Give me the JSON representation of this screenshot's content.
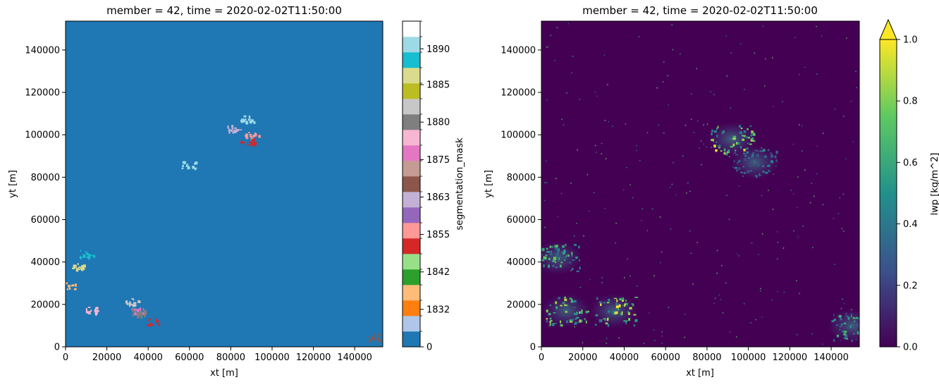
{
  "chart_data": [
    {
      "type": "heatmap",
      "title": "member = 42, time = 2020-02-02T11:50:00",
      "xlabel": "xt [m]",
      "ylabel": "yt [m]",
      "xlim": [
        0,
        153600
      ],
      "ylim": [
        0,
        153600
      ],
      "xticks": [
        "0",
        "20000",
        "40000",
        "60000",
        "80000",
        "100000",
        "120000",
        "140000"
      ],
      "yticks": [
        "0",
        "20000",
        "40000",
        "60000",
        "80000",
        "100000",
        "120000",
        "140000"
      ],
      "background_value": 0,
      "background_color": "#1f77b4",
      "colorbar": {
        "label": "segmentation_mask",
        "ticklabels": [
          "0",
          "1832",
          "1842",
          "1855",
          "1863",
          "1875",
          "1880",
          "1885",
          "1890"
        ],
        "colors": [
          "#1f77b4",
          "#aec7e8",
          "#ff7f0e",
          "#ffbb78",
          "#2ca02c",
          "#98df8a",
          "#d62728",
          "#ff9896",
          "#9467bd",
          "#c5b0d5",
          "#8c564b",
          "#c49c94",
          "#e377c2",
          "#f7b6d2",
          "#7f7f7f",
          "#c7c7c7",
          "#bcbd22",
          "#dbdb8d",
          "#17becf",
          "#9edae5",
          "#ffffff"
        ]
      },
      "features": [
        {
          "x": 90000,
          "y": 100000,
          "color": "#ff9896"
        },
        {
          "x": 88000,
          "y": 97000,
          "color": "#d62728"
        },
        {
          "x": 81000,
          "y": 103000,
          "color": "#c5b0d5"
        },
        {
          "x": 88000,
          "y": 107500,
          "color": "#9edae5"
        },
        {
          "x": 59500,
          "y": 86000,
          "color": "#9edae5"
        },
        {
          "x": 12000,
          "y": 17500,
          "color": "#f7b6d2"
        },
        {
          "x": 34000,
          "y": 17000,
          "color": "#e377c2"
        },
        {
          "x": 35500,
          "y": 16000,
          "color": "#7f7f7f"
        },
        {
          "x": 32000,
          "y": 21500,
          "color": "#c7c7c7"
        },
        {
          "x": 6000,
          "y": 38000,
          "color": "#dbdb8d"
        },
        {
          "x": 10000,
          "y": 44000,
          "color": "#17becf"
        },
        {
          "x": 42000,
          "y": 12000,
          "color": "#d62728"
        },
        {
          "x": 148000,
          "y": 5000,
          "color": "#8c564b"
        },
        {
          "x": 1500,
          "y": 29000,
          "color": "#ffbb78"
        }
      ]
    },
    {
      "type": "heatmap",
      "title": "member = 42, time = 2020-02-02T11:50:00",
      "xlabel": "xt [m]",
      "ylabel": "yt [m]",
      "xlim": [
        0,
        153600
      ],
      "ylim": [
        0,
        153600
      ],
      "xticks": [
        "0",
        "20000",
        "40000",
        "60000",
        "80000",
        "100000",
        "120000",
        "140000"
      ],
      "yticks": [
        "0",
        "20000",
        "40000",
        "60000",
        "80000",
        "100000",
        "120000",
        "140000"
      ],
      "colormap": "viridis",
      "colorbar": {
        "label": "lwp [kg/m^2]",
        "range": [
          0.0,
          1.0
        ],
        "ticklabels": [
          "0.0",
          "0.2",
          "0.4",
          "0.6",
          "0.8",
          "1.0"
        ],
        "extend": "max"
      },
      "features": [
        {
          "x": 92000,
          "y": 98000,
          "value": 1.0
        },
        {
          "x": 103000,
          "y": 87000,
          "value": 0.5
        },
        {
          "x": 35000,
          "y": 17000,
          "value": 1.0
        },
        {
          "x": 12000,
          "y": 17000,
          "value": 0.9
        },
        {
          "x": 8000,
          "y": 42000,
          "value": 0.8
        },
        {
          "x": 150000,
          "y": 10000,
          "value": 0.7
        }
      ]
    }
  ]
}
